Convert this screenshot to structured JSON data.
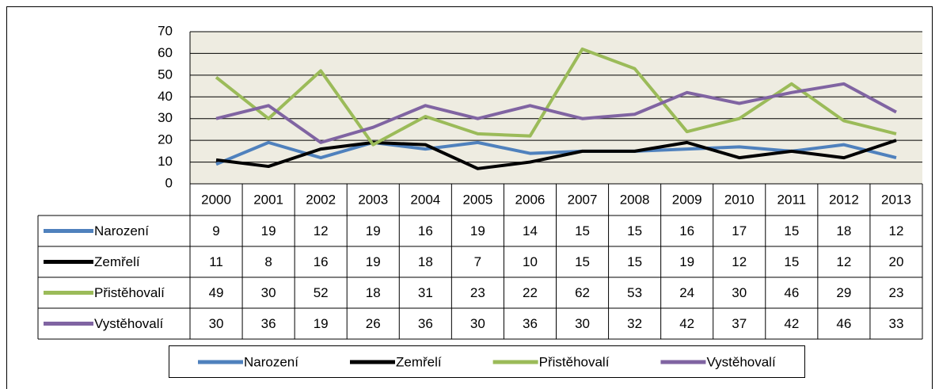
{
  "chart_data": {
    "type": "line",
    "categories": [
      "2000",
      "2001",
      "2002",
      "2003",
      "2004",
      "2005",
      "2006",
      "2007",
      "2008",
      "2009",
      "2010",
      "2011",
      "2012",
      "2013"
    ],
    "series": [
      {
        "name": "Narození",
        "color": "#4f81bd",
        "values": [
          9,
          19,
          12,
          19,
          16,
          19,
          14,
          15,
          15,
          16,
          17,
          15,
          18,
          12
        ]
      },
      {
        "name": "Zemřelí",
        "color": "#000000",
        "values": [
          11,
          8,
          16,
          19,
          18,
          7,
          10,
          15,
          15,
          19,
          12,
          15,
          12,
          20
        ]
      },
      {
        "name": "Přistěhovalí",
        "color": "#9bbb59",
        "values": [
          49,
          30,
          52,
          18,
          31,
          23,
          22,
          62,
          53,
          24,
          30,
          46,
          29,
          23
        ]
      },
      {
        "name": "Vystěhovalí",
        "color": "#8064a2",
        "values": [
          30,
          36,
          19,
          26,
          36,
          30,
          36,
          30,
          32,
          42,
          37,
          42,
          46,
          33
        ]
      }
    ],
    "ylim": [
      0,
      70
    ],
    "yticks": [
      0,
      10,
      20,
      30,
      40,
      50,
      60,
      70
    ],
    "grid": true,
    "plot_background": "#eeece1"
  }
}
